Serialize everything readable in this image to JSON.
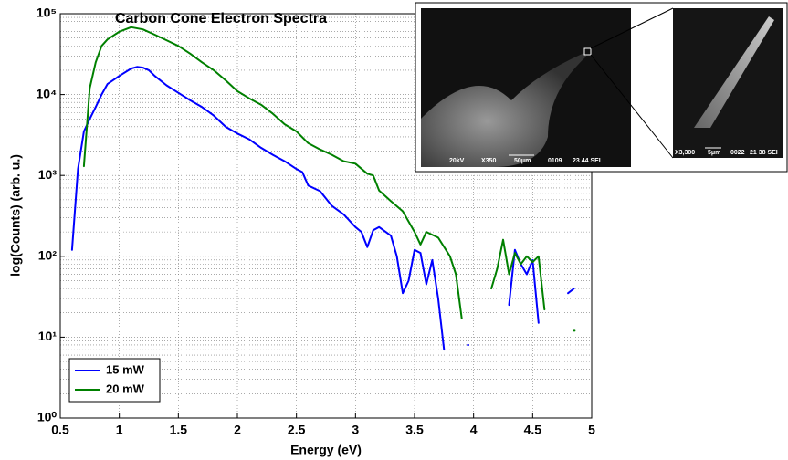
{
  "chart_data": {
    "type": "line",
    "title": "Carbon Cone Electron Spectra",
    "x_label": "Energy (eV)",
    "y_label": "log(Counts) (arb. u.)",
    "log_y": true,
    "grid": true,
    "legend_position": "lower left",
    "xlim": [
      0.5,
      5
    ],
    "xticks": [
      0.5,
      1,
      1.5,
      2,
      2.5,
      3,
      3.5,
      4,
      4.5,
      5
    ],
    "ylim": [
      1,
      100000
    ],
    "yticks": [
      {
        "value": 1,
        "label": "10⁰"
      },
      {
        "value": 10,
        "label": "10¹"
      },
      {
        "value": 100,
        "label": "10²"
      },
      {
        "value": 1000,
        "label": "10³"
      },
      {
        "value": 10000,
        "label": "10⁴"
      },
      {
        "value": 100000,
        "label": "10⁵"
      }
    ],
    "series": [
      {
        "name": "15 mW",
        "color": "#0000ff",
        "x": [
          0.6,
          0.65,
          0.7,
          0.75,
          0.8,
          0.85,
          0.9,
          1.0,
          1.1,
          1.15,
          1.2,
          1.25,
          1.3,
          1.4,
          1.5,
          1.6,
          1.7,
          1.8,
          1.9,
          2.0,
          2.1,
          2.2,
          2.3,
          2.4,
          2.5,
          2.55,
          2.6,
          2.7,
          2.8,
          2.9,
          3.0,
          3.05,
          3.1,
          3.15,
          3.2,
          3.3,
          3.35,
          3.4,
          3.45,
          3.5,
          3.55,
          3.6,
          3.65,
          3.7,
          3.75,
          3.85,
          3.95,
          4.1,
          4.3,
          4.35,
          4.4,
          4.45,
          4.5,
          4.55,
          4.7,
          4.8,
          4.85
        ],
        "values": [
          120,
          1200,
          3500,
          5000,
          7000,
          10000,
          13500,
          17000,
          21000,
          22000,
          21500,
          20000,
          17000,
          13000,
          10500,
          8500,
          7000,
          5500,
          4000,
          3300,
          2800,
          2200,
          1800,
          1500,
          1200,
          1100,
          750,
          640,
          420,
          330,
          230,
          200,
          130,
          210,
          230,
          180,
          100,
          35,
          50,
          120,
          110,
          45,
          90,
          30,
          7,
          null,
          8,
          null,
          25,
          120,
          80,
          60,
          90,
          15,
          null,
          35,
          40
        ]
      },
      {
        "name": "20 mW",
        "color": "#008000",
        "x": [
          0.7,
          0.75,
          0.8,
          0.85,
          0.9,
          1.0,
          1.1,
          1.2,
          1.3,
          1.4,
          1.5,
          1.6,
          1.7,
          1.8,
          1.9,
          2.0,
          2.1,
          2.2,
          2.3,
          2.4,
          2.5,
          2.6,
          2.7,
          2.8,
          2.9,
          3.0,
          3.1,
          3.15,
          3.2,
          3.3,
          3.4,
          3.5,
          3.55,
          3.6,
          3.7,
          3.8,
          3.85,
          3.9,
          4.0,
          4.15,
          4.2,
          4.25,
          4.3,
          4.35,
          4.4,
          4.45,
          4.5,
          4.55,
          4.6,
          4.7,
          4.85
        ],
        "values": [
          1300,
          12000,
          25000,
          40000,
          48000,
          60000,
          68000,
          64000,
          55000,
          47000,
          40000,
          32000,
          25000,
          20000,
          15000,
          11000,
          9000,
          7500,
          5800,
          4300,
          3500,
          2500,
          2100,
          1800,
          1500,
          1400,
          1050,
          1000,
          650,
          480,
          360,
          200,
          140,
          200,
          170,
          100,
          60,
          17,
          null,
          40,
          70,
          160,
          60,
          110,
          80,
          100,
          85,
          100,
          22,
          null,
          12
        ]
      }
    ],
    "inset": {
      "left": [
        "20kV",
        "X350",
        "50μm",
        "0109",
        "23 44 SEI"
      ],
      "right": [
        "X3,300",
        "5μm",
        "0022",
        "21 38 SEI"
      ]
    }
  }
}
